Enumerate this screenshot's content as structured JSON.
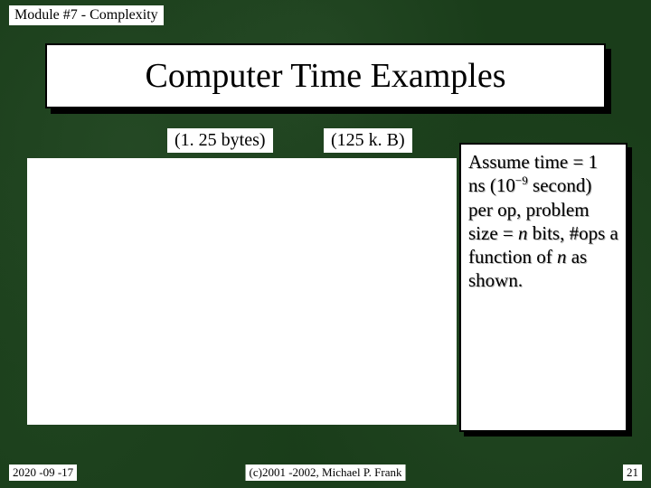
{
  "header": {
    "module": "Module #7 - Complexity"
  },
  "title": "Computer Time Examples",
  "labels": {
    "left": "(1. 25 bytes)",
    "right": "(125 k. B)"
  },
  "sidebox": {
    "line1": "Assume time",
    "line2a": "= 1 ns (10",
    "line2sup": "−9",
    "line3": "second) per",
    "line4": "op, problem",
    "line5a": "size = ",
    "line5n": "n",
    "line5b": " bits,",
    "line6": "#ops a",
    "line7a": "function of ",
    "line7n": "n",
    "line8": "as shown."
  },
  "footer": {
    "date": "2020 -09 -17",
    "copyright": "(c)2001 -2002, Michael P. Frank",
    "page": "21"
  },
  "colors": {
    "background": "#1a3d1a",
    "box_bg": "#ffffff",
    "border": "#000000",
    "text": "#000000"
  }
}
